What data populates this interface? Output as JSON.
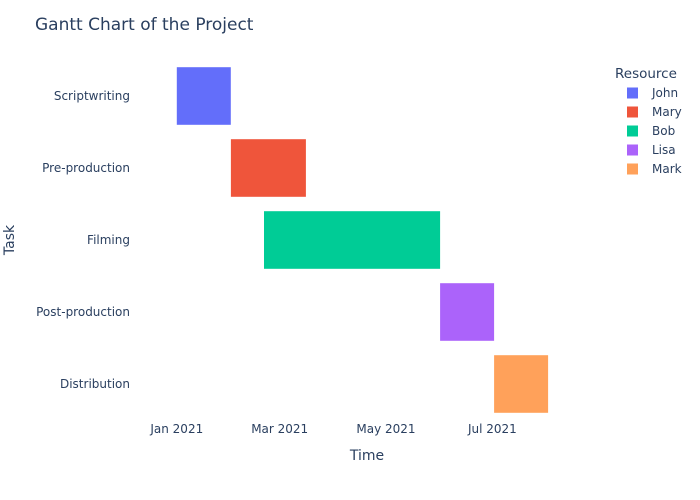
{
  "chart_data": {
    "type": "gantt",
    "title": "Gantt Chart of the Project",
    "xlabel": "Time",
    "ylabel": "Task",
    "x_range": [
      "2020-12-08",
      "2021-08-26"
    ],
    "x_ticks": [
      {
        "date": "2021-01-01",
        "label": "Jan 2021"
      },
      {
        "date": "2021-03-01",
        "label": "Mar 2021"
      },
      {
        "date": "2021-05-01",
        "label": "May 2021"
      },
      {
        "date": "2021-07-01",
        "label": "Jul 2021"
      }
    ],
    "grid": false,
    "legend_position": "top-right",
    "legend_title": "Resource",
    "tasks": [
      {
        "task": "Scriptwriting",
        "start": "2021-01-01",
        "end": "2021-01-31",
        "resource": "John"
      },
      {
        "task": "Pre-production",
        "start": "2021-02-01",
        "end": "2021-03-15",
        "resource": "Mary"
      },
      {
        "task": "Filming",
        "start": "2021-02-20",
        "end": "2021-05-31",
        "resource": "Bob"
      },
      {
        "task": "Post-production",
        "start": "2021-06-01",
        "end": "2021-07-01",
        "resource": "Lisa"
      },
      {
        "task": "Distribution",
        "start": "2021-07-02",
        "end": "2021-08-01",
        "resource": "Mark"
      }
    ],
    "resources": [
      {
        "name": "John",
        "color": "#636efa"
      },
      {
        "name": "Mary",
        "color": "#ef553b"
      },
      {
        "name": "Bob",
        "color": "#00cc96"
      },
      {
        "name": "Lisa",
        "color": "#ab63fa"
      },
      {
        "name": "Mark",
        "color": "#ffa15a"
      }
    ]
  }
}
